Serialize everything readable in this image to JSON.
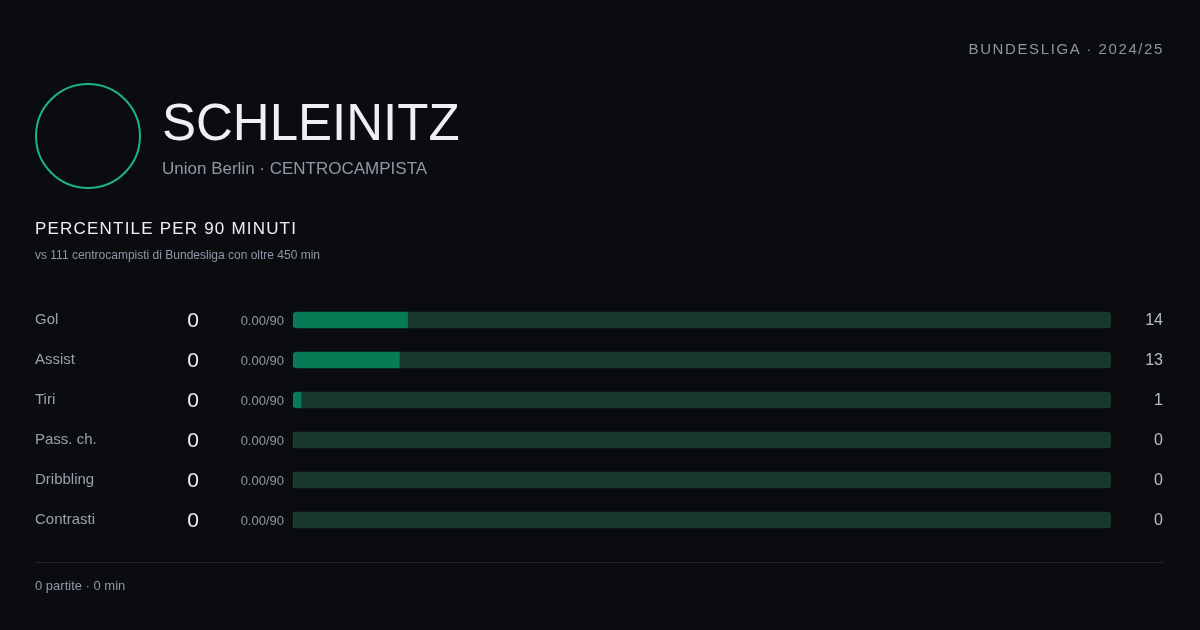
{
  "chart_data": {
    "type": "bar",
    "orientation": "horizontal",
    "stacked": true,
    "title": "PERCENTILE PER 90 MINUTI",
    "subtitle": "vs 111 centrocampisti di Bundesliga con oltre 450 min",
    "categories": [
      "Gol",
      "Assist",
      "Tiri",
      "Pass. ch.",
      "Dribbling",
      "Contrasti"
    ],
    "series": [
      {
        "color": "#087a56",
        "values": [
          14,
          13,
          1,
          0,
          0,
          0
        ],
        "value_labels": [
          "14",
          "13",
          "1",
          "0",
          "0",
          "0"
        ]
      },
      {
        "color": "#16382c",
        "values": [
          86,
          87,
          99,
          100,
          100,
          100
        ]
      }
    ],
    "xlim": [
      0,
      100
    ],
    "tick_labels": "y",
    "annotations": [
      "BUNDESLIGA · 2024/25",
      "SCHLEINITZ",
      "Union Berlin · CENTROCAMPISTA",
      "0 partite · 0 min",
      "0",
      "0.00/90",
      "0",
      "0.00/90",
      "0",
      "0.00/90",
      "0",
      "0.00/90",
      "0",
      "0.00/90",
      "0",
      "0.00/90"
    ]
  }
}
